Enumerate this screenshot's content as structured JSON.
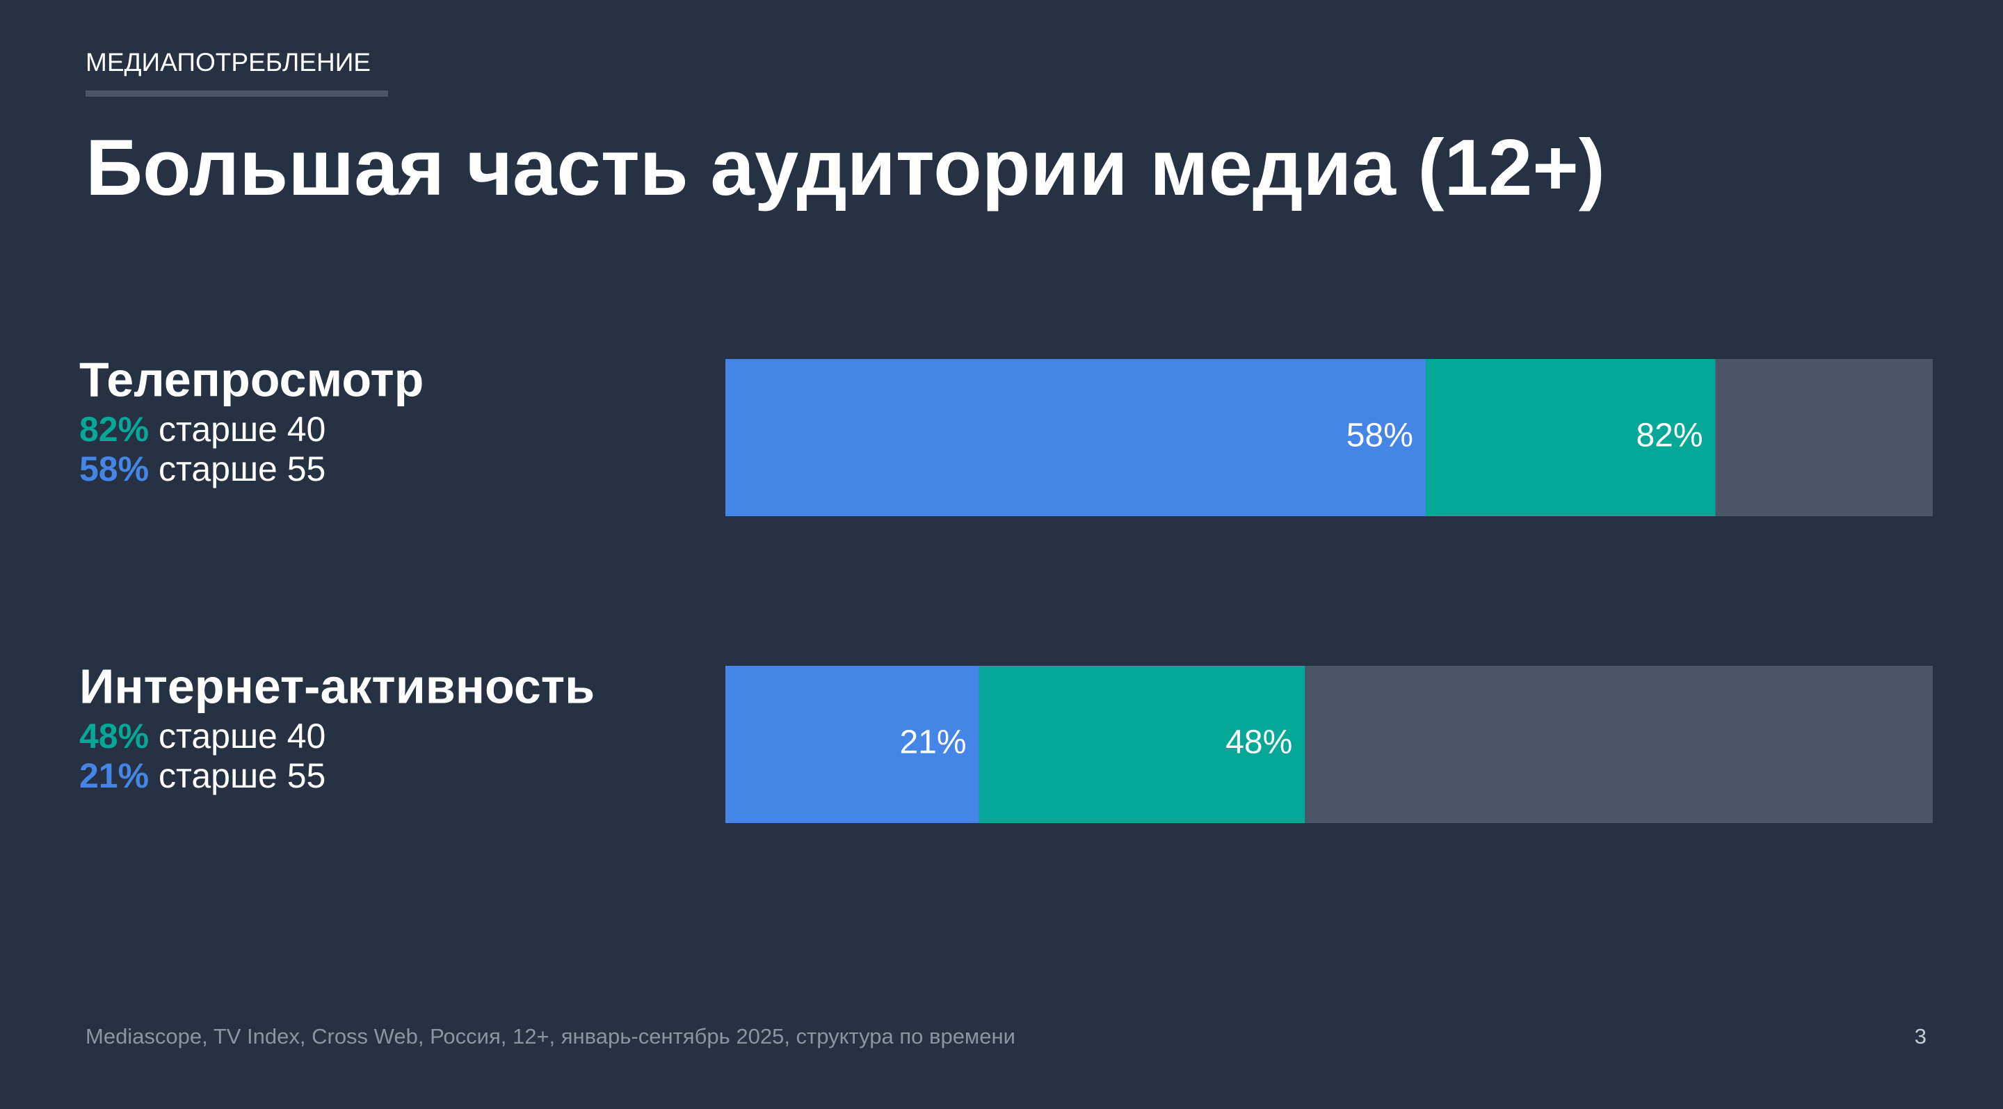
{
  "header": {
    "section": "МЕДИАПОТРЕБЛЕНИЕ"
  },
  "chart_data": {
    "type": "bar",
    "orientation": "horizontal",
    "title": "Большая часть аудитории медиа (12+)",
    "categories": [
      "Телепросмотр",
      "Интернет-активность"
    ],
    "series": [
      {
        "name": "старше 40",
        "color": "#05a896",
        "values": [
          82,
          48
        ],
        "value_labels": [
          "82%",
          "48%"
        ]
      },
      {
        "name": "старше 55",
        "color": "#4585e5",
        "values": [
          58,
          21
        ],
        "value_labels": [
          "58%",
          "21%"
        ]
      }
    ],
    "xlim": [
      0,
      100
    ]
  },
  "footer": {
    "source": "Mediascope, TV Index, Cross Web, Россия, 12+, январь-сентябрь 2025, структура по времени",
    "page": 3
  }
}
